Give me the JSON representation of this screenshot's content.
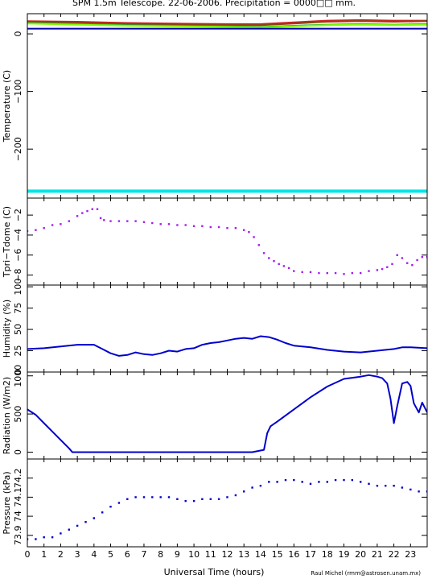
{
  "title": "SPM 1.5m Telescope. 22-06-2006. Precipitation = 0000□□ mm.",
  "credit": "Raul Michel (rmm@astrosen.unam.mx)",
  "chart_data": {
    "type": "scatter",
    "xlabel": "Universal Time (hours)",
    "xlim": [
      0,
      24
    ],
    "x_ticks": [
      "0",
      "1",
      "2",
      "3",
      "4",
      "5",
      "6",
      "7",
      "8",
      "9",
      "10",
      "11",
      "12",
      "13",
      "14",
      "15",
      "16",
      "17",
      "18",
      "19",
      "20",
      "21",
      "22",
      "23"
    ],
    "panels": [
      {
        "id": "temperature",
        "ylabel": "Temperature (C)",
        "ylim": [
          -285,
          35
        ],
        "y_ticks": [
          0,
          -100,
          -200
        ],
        "y_tick_labels": [
          "0",
          "−100",
          "−200"
        ],
        "series": [
          {
            "color": "#cc2222",
            "style": "line",
            "x": [
              0,
              3,
              6,
              9,
              12,
              14,
              16,
              18,
              20,
              22,
              24
            ],
            "y": [
              22,
              21,
              19,
              18,
              17,
              17,
              20,
              23,
              24,
              23,
              23
            ]
          },
          {
            "color": "#8b4513",
            "style": "line",
            "x": [
              0,
              3,
              6,
              9,
              12,
              14,
              16,
              18,
              20,
              22,
              24
            ],
            "y": [
              20,
              19,
              17,
              16,
              15,
              15,
              18,
              21,
              22,
              21,
              22
            ]
          },
          {
            "color": "#22aa22",
            "style": "line",
            "x": [
              0,
              3,
              6,
              9,
              12,
              14,
              16,
              18,
              20,
              22,
              24
            ],
            "y": [
              19,
              17,
              15,
              14,
              13,
              12,
              14,
              16,
              17,
              16,
              17
            ]
          },
          {
            "color": "#7fff00",
            "style": "line",
            "x": [
              0,
              3,
              6,
              9,
              12,
              14,
              16,
              18,
              20,
              22,
              24
            ],
            "y": [
              18,
              16,
              14,
              13,
              12,
              11,
              13,
              15,
              16,
              15,
              16
            ]
          },
          {
            "color": "#0000aa",
            "style": "line",
            "x": [
              0,
              24
            ],
            "y": [
              9,
              9
            ]
          },
          {
            "color": "#00e5e5",
            "style": "band",
            "x": [
              0,
              24
            ],
            "y": [
              -273,
              -273
            ]
          }
        ]
      },
      {
        "id": "tpri-tdome",
        "ylabel": "Tpri−Tdome (C)",
        "ylim": [
          -9,
          -0.3
        ],
        "y_ticks": [
          -2,
          -4,
          -6,
          -8
        ],
        "y_tick_labels": [
          "−2",
          "−4",
          "−6",
          "−8"
        ],
        "series": [
          {
            "color": "#a020f0",
            "style": "points",
            "x": [
              0,
              0.5,
              1,
              1.5,
              2,
              2.5,
              3,
              3.3,
              3.6,
              3.9,
              4.2,
              4.4,
              4.6,
              5,
              5.5,
              6,
              6.5,
              7,
              7.5,
              8,
              8.5,
              9,
              9.5,
              10,
              10.5,
              11,
              11.5,
              12,
              12.5,
              13,
              13.3,
              13.6,
              13.9,
              14.2,
              14.5,
              14.8,
              15.1,
              15.4,
              15.7,
              16,
              16.5,
              17,
              17.5,
              18,
              18.5,
              19,
              19.5,
              20,
              20.5,
              21,
              21.3,
              21.6,
              21.9,
              22.2,
              22.5,
              22.8,
              23.1,
              23.4,
              23.7,
              24
            ],
            "y": [
              -3.6,
              -3.5,
              -3.3,
              -3.0,
              -2.9,
              -2.6,
              -2.1,
              -1.8,
              -1.6,
              -1.4,
              -1.4,
              -2.3,
              -2.5,
              -2.6,
              -2.6,
              -2.6,
              -2.6,
              -2.7,
              -2.8,
              -2.9,
              -2.9,
              -3.0,
              -3.0,
              -3.1,
              -3.1,
              -3.2,
              -3.2,
              -3.3,
              -3.3,
              -3.5,
              -3.7,
              -4.2,
              -5.0,
              -5.8,
              -6.3,
              -6.6,
              -6.9,
              -7.1,
              -7.3,
              -7.6,
              -7.7,
              -7.7,
              -7.8,
              -7.8,
              -7.8,
              -7.9,
              -7.8,
              -7.8,
              -7.6,
              -7.5,
              -7.4,
              -7.2,
              -6.9,
              -6.0,
              -6.3,
              -6.8,
              -7.0,
              -6.5,
              -6.2,
              -6.2
            ]
          }
        ]
      },
      {
        "id": "humidity",
        "ylabel": "Humidity (%)",
        "ylim": [
          0,
          102
        ],
        "y_ticks": [
          0,
          25,
          50,
          75,
          100
        ],
        "y_tick_labels": [
          "0",
          "25",
          "50",
          "75",
          "100"
        ],
        "series": [
          {
            "color": "#0000cd",
            "style": "line",
            "x": [
              0,
              1,
              2,
              3,
              4,
              4.5,
              5,
              5.5,
              6,
              6.5,
              7,
              7.5,
              8,
              8.5,
              9,
              9.5,
              10,
              10.5,
              11,
              11.5,
              12,
              12.5,
              13,
              13.5,
              14,
              14.5,
              15,
              15.5,
              16,
              17,
              18,
              19,
              20,
              21,
              22,
              22.5,
              23,
              24
            ],
            "y": [
              27,
              28,
              30,
              32,
              32,
              27,
              22,
              19,
              20,
              23,
              21,
              20,
              22,
              25,
              24,
              27,
              28,
              32,
              34,
              35,
              37,
              39,
              40,
              39,
              42,
              41,
              38,
              34,
              31,
              29,
              26,
              24,
              23,
              25,
              27,
              29,
              29,
              28
            ]
          }
        ]
      },
      {
        "id": "radiation",
        "ylabel": "Radiation (W/m2)",
        "ylim": [
          -90,
          1050
        ],
        "y_ticks": [
          0,
          500,
          1000
        ],
        "y_tick_labels": [
          "0",
          "500",
          "1000"
        ],
        "series": [
          {
            "color": "#0000cd",
            "style": "line",
            "x": [
              0,
              0.5,
              1,
              1.5,
              2,
              2.5,
              2.7,
              3,
              6,
              9,
              12,
              13.5,
              14.2,
              14.4,
              14.6,
              15,
              16,
              17,
              18,
              19,
              20,
              20.5,
              21,
              21.3,
              21.6,
              21.8,
              22,
              22.2,
              22.5,
              22.8,
              23,
              23.2,
              23.5,
              23.7,
              24
            ],
            "y": [
              560,
              490,
              380,
              270,
              160,
              50,
              0,
              0,
              0,
              0,
              0,
              0,
              30,
              250,
              340,
              400,
              560,
              720,
              860,
              960,
              990,
              1010,
              990,
              970,
              900,
              700,
              380,
              600,
              900,
              920,
              870,
              640,
              520,
              650,
              520
            ]
          }
        ]
      },
      {
        "id": "pressure",
        "ylabel": "Pressure (kPa)",
        "ylim": [
          73.84,
          74.3
        ],
        "y_ticks": [
          73.9,
          74.0,
          74.1,
          74.2
        ],
        "y_tick_labels": [
          "73.9",
          "74",
          "74.1",
          "74.2"
        ],
        "series": [
          {
            "color": "#0000cd",
            "style": "points",
            "x": [
              0,
              0.5,
              1,
              1.5,
              2,
              2.5,
              3,
              3.5,
              4,
              4.5,
              5,
              5.5,
              6,
              6.5,
              7,
              7.5,
              8,
              8.5,
              9,
              9.5,
              10,
              10.5,
              11,
              11.5,
              12,
              12.5,
              13,
              13.5,
              14,
              14.5,
              15,
              15.5,
              16,
              16.5,
              17,
              17.5,
              18,
              18.5,
              19,
              19.5,
              20,
              20.5,
              21,
              21.5,
              22,
              22.5,
              23,
              23.5,
              24
            ],
            "y": [
              73.88,
              73.88,
              73.89,
              73.89,
              73.91,
              73.93,
              73.95,
              73.97,
              73.99,
              74.02,
              74.05,
              74.07,
              74.09,
              74.1,
              74.1,
              74.1,
              74.1,
              74.1,
              74.09,
              74.08,
              74.08,
              74.09,
              74.09,
              74.09,
              74.1,
              74.11,
              74.13,
              74.15,
              74.16,
              74.18,
              74.18,
              74.19,
              74.19,
              74.18,
              74.17,
              74.18,
              74.18,
              74.19,
              74.19,
              74.19,
              74.18,
              74.17,
              74.16,
              74.16,
              74.16,
              74.15,
              74.14,
              74.13,
              74.13
            ]
          }
        ]
      }
    ]
  }
}
